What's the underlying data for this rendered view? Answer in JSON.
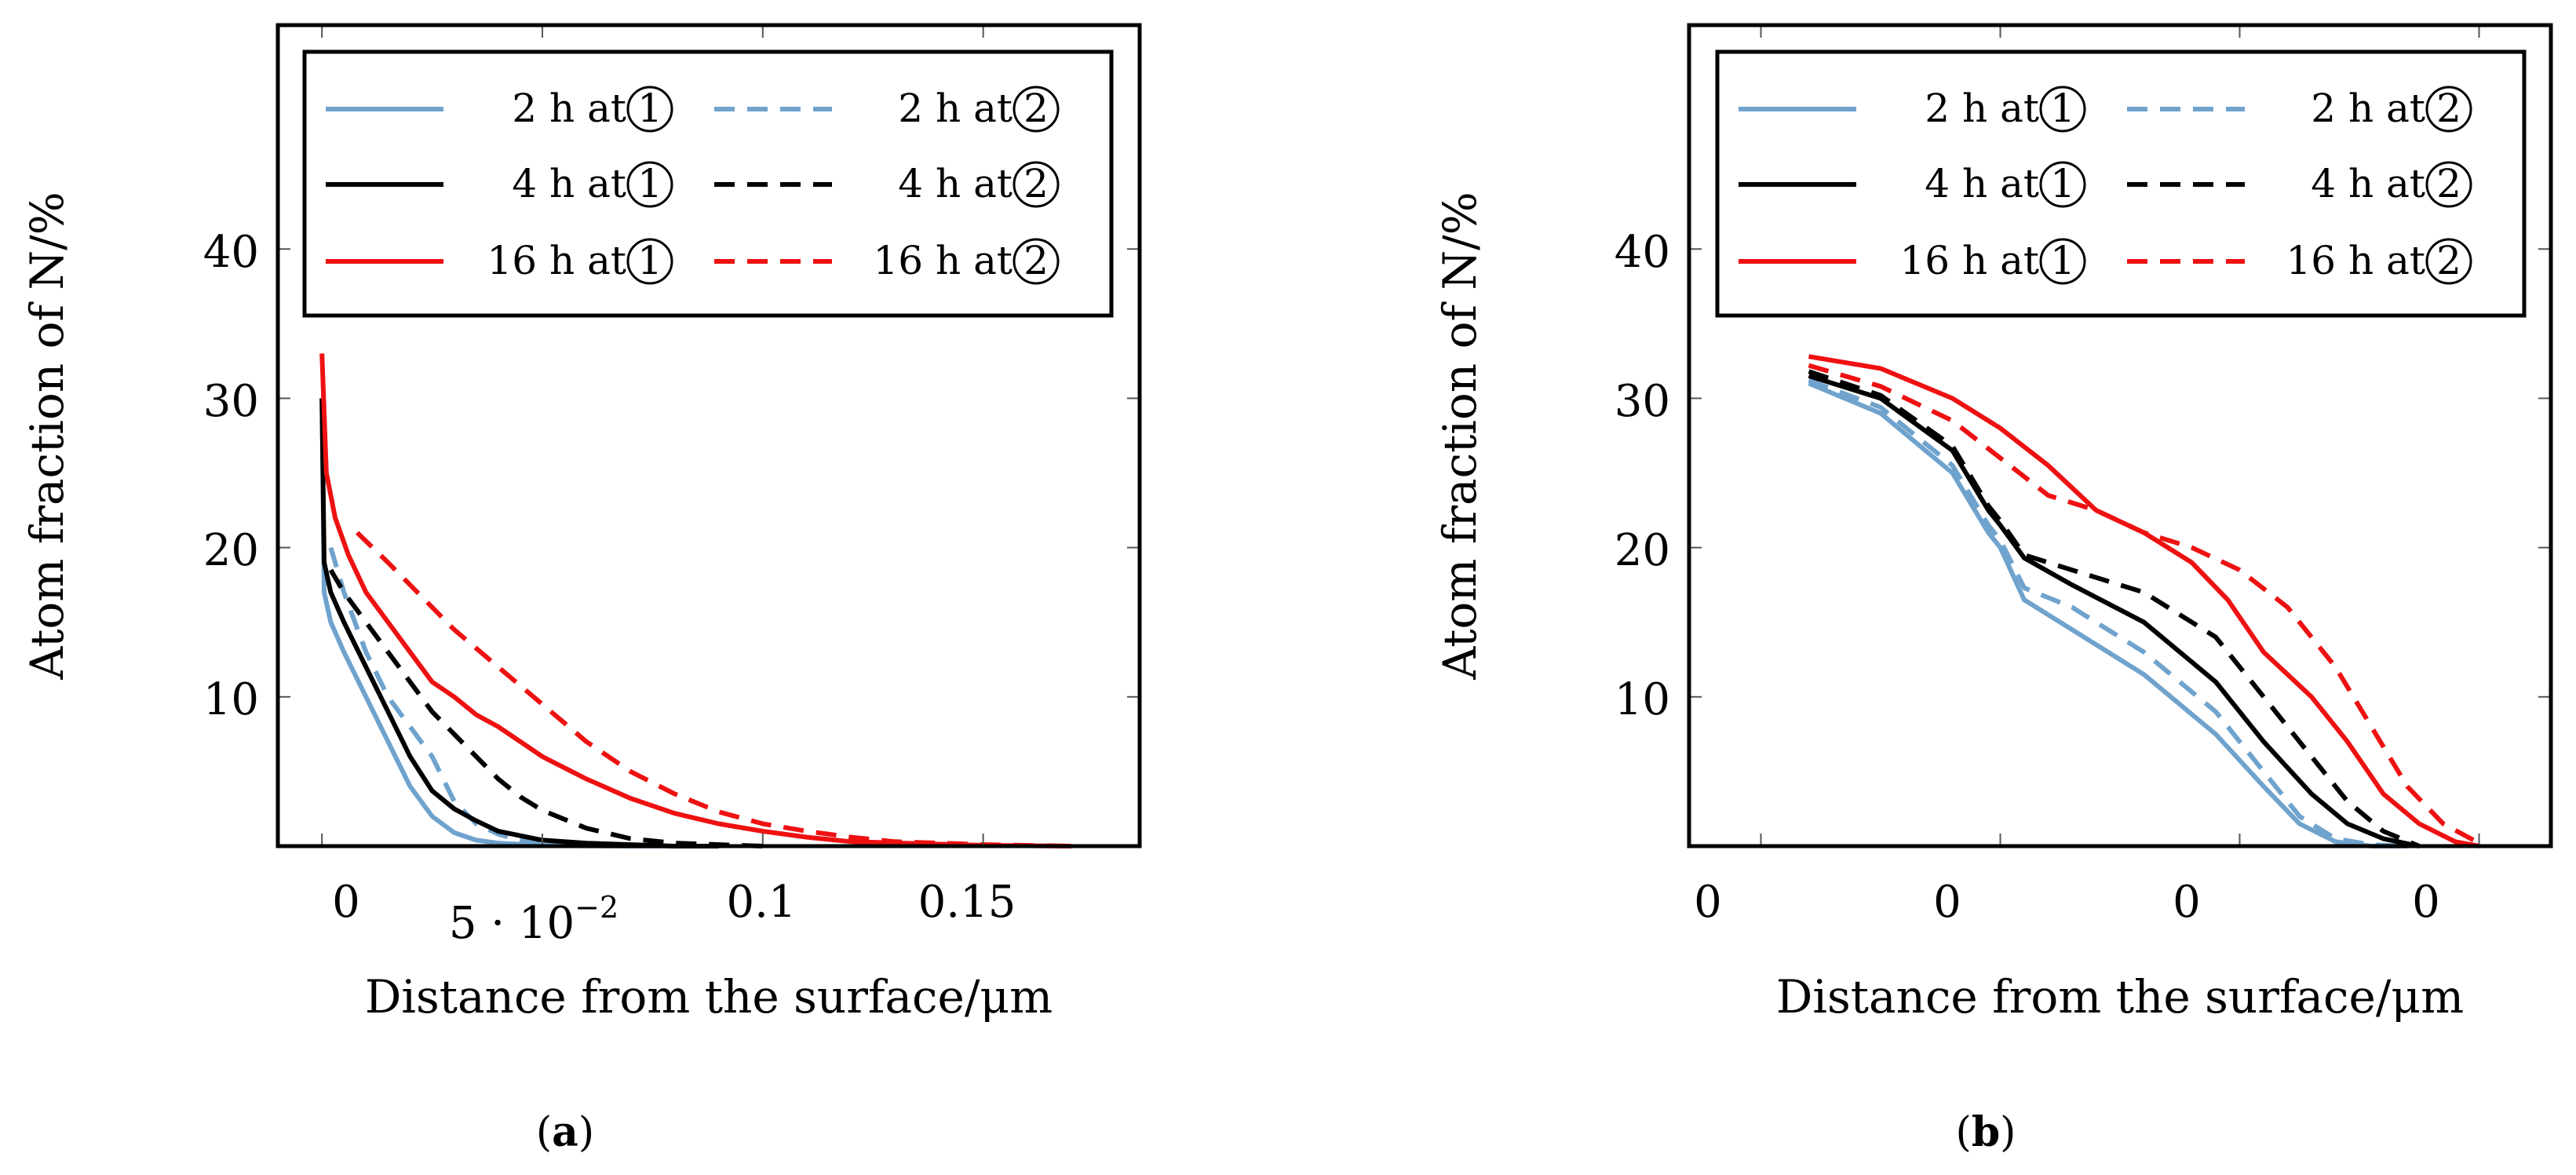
{
  "colors": {
    "lightblue": "#6fa3cd",
    "black": "#000000",
    "red": "#ee1111"
  },
  "chart_data": [
    {
      "panel": "a",
      "caption_letter": "a",
      "type": "line",
      "xlabel": "Distance from the surface/μm",
      "ylabel": "Atom fraction of N/%",
      "xlim": [
        -0.01,
        0.1855
      ],
      "ylim": [
        0,
        55
      ],
      "x_ticks": [
        0,
        0.05,
        0.1,
        0.15
      ],
      "x_tick_labels": [
        "0",
        "5 · 10",
        "0.1",
        "0.15"
      ],
      "x_tick_exponent": "−2",
      "y_ticks": [
        10,
        20,
        30,
        40
      ],
      "y_tick_labels": [
        "10",
        "20",
        "30",
        "40"
      ],
      "legend": {
        "placement": "top",
        "entries": [
          {
            "hours": "2",
            "unit": "h at",
            "step": "1",
            "color": "lightblue",
            "dash": false
          },
          {
            "hours": "2",
            "unit": "h at",
            "step": "2",
            "color": "lightblue",
            "dash": true
          },
          {
            "hours": "4",
            "unit": "h at",
            "step": "1",
            "color": "black",
            "dash": false
          },
          {
            "hours": "4",
            "unit": "h at",
            "step": "2",
            "color": "black",
            "dash": true
          },
          {
            "hours": "16",
            "unit": "h at",
            "step": "1",
            "color": "red",
            "dash": false
          },
          {
            "hours": "16",
            "unit": "h at",
            "step": "2",
            "color": "red",
            "dash": true
          }
        ]
      },
      "series": [
        {
          "name": "2 h at 1",
          "color": "lightblue",
          "dash": false,
          "x": [
            0,
            0.0005,
            0.002,
            0.005,
            0.01,
            0.015,
            0.02,
            0.025,
            0.03,
            0.035,
            0.04,
            0.05,
            0.06,
            0.07,
            0.08
          ],
          "y": [
            30,
            17,
            15,
            13,
            10,
            7,
            4,
            2,
            0.9,
            0.4,
            0.2,
            0.05,
            0.02,
            0,
            0
          ]
        },
        {
          "name": "2 h at 2",
          "color": "lightblue",
          "dash": true,
          "x": [
            0.002,
            0.005,
            0.01,
            0.015,
            0.02,
            0.025,
            0.03,
            0.035,
            0.04,
            0.045,
            0.05,
            0.06,
            0.07,
            0.08
          ],
          "y": [
            20,
            17,
            13,
            10,
            8,
            6,
            3,
            1.5,
            0.8,
            0.4,
            0.2,
            0.1,
            0,
            0
          ]
        },
        {
          "name": "4 h at 1",
          "color": "black",
          "dash": false,
          "x": [
            0,
            0.0005,
            0.002,
            0.005,
            0.01,
            0.015,
            0.02,
            0.025,
            0.03,
            0.035,
            0.04,
            0.05,
            0.06,
            0.07,
            0.08,
            0.09
          ],
          "y": [
            30,
            19,
            17,
            15,
            12,
            9,
            6,
            3.7,
            2.5,
            1.7,
            1,
            0.4,
            0.2,
            0.1,
            0,
            0
          ]
        },
        {
          "name": "4 h at 2",
          "color": "black",
          "dash": true,
          "x": [
            0.002,
            0.005,
            0.01,
            0.015,
            0.02,
            0.025,
            0.03,
            0.035,
            0.04,
            0.045,
            0.05,
            0.06,
            0.07,
            0.08,
            0.09,
            0.1
          ],
          "y": [
            18.5,
            17,
            15,
            13,
            11,
            9,
            7.5,
            6,
            4.5,
            3.3,
            2.4,
            1.2,
            0.5,
            0.2,
            0.1,
            0
          ]
        },
        {
          "name": "16 h at 1",
          "color": "red",
          "dash": false,
          "x": [
            0,
            0.001,
            0.003,
            0.006,
            0.01,
            0.015,
            0.02,
            0.025,
            0.03,
            0.035,
            0.04,
            0.05,
            0.06,
            0.07,
            0.08,
            0.09,
            0.1,
            0.11,
            0.12,
            0.15,
            0.17
          ],
          "y": [
            33,
            25,
            22,
            19.5,
            17,
            15,
            13,
            11,
            10,
            8.8,
            8,
            6,
            4.5,
            3.2,
            2.2,
            1.5,
            1,
            0.6,
            0.3,
            0.05,
            0
          ]
        },
        {
          "name": "16 h at 2",
          "color": "red",
          "dash": true,
          "x": [
            0.008,
            0.015,
            0.02,
            0.03,
            0.04,
            0.05,
            0.06,
            0.07,
            0.08,
            0.09,
            0.1,
            0.11,
            0.12,
            0.13,
            0.15,
            0.17
          ],
          "y": [
            21,
            19,
            17.5,
            14.5,
            12,
            9.5,
            7,
            5,
            3.5,
            2.3,
            1.5,
            1,
            0.6,
            0.3,
            0.1,
            0
          ]
        }
      ]
    },
    {
      "panel": "b",
      "caption_letter": "b",
      "type": "line",
      "xlabel": "Distance from the surface/μm",
      "ylabel": "Atom fraction of N/%",
      "xlim": [
        -0.3,
        3.3
      ],
      "ylim": [
        0,
        55
      ],
      "x_ticks": [
        0,
        1,
        2,
        3
      ],
      "x_tick_labels": [
        "0",
        "0",
        "0",
        "0"
      ],
      "y_ticks": [
        10,
        20,
        30,
        40
      ],
      "y_tick_labels": [
        "10",
        "20",
        "30",
        "40"
      ],
      "legend": {
        "placement": "top",
        "entries": [
          {
            "hours": "2",
            "unit": "h at",
            "step": "1",
            "color": "lightblue",
            "dash": false
          },
          {
            "hours": "2",
            "unit": "h at",
            "step": "2",
            "color": "lightblue",
            "dash": true
          },
          {
            "hours": "4",
            "unit": "h at",
            "step": "1",
            "color": "black",
            "dash": false
          },
          {
            "hours": "4",
            "unit": "h at",
            "step": "2",
            "color": "black",
            "dash": true
          },
          {
            "hours": "16",
            "unit": "h at",
            "step": "1",
            "color": "red",
            "dash": false
          },
          {
            "hours": "16",
            "unit": "h at",
            "step": "2",
            "color": "red",
            "dash": true
          }
        ]
      },
      "series": [
        {
          "name": "2 h at 1",
          "color": "lightblue",
          "dash": false,
          "x": [
            0.2,
            0.5,
            0.8,
            0.95,
            1.0,
            1.1,
            1.3,
            1.6,
            1.9,
            2.1,
            2.25,
            2.4,
            2.55,
            2.7
          ],
          "y": [
            31,
            29,
            25,
            21,
            20,
            16.5,
            14.5,
            11.5,
            7.5,
            4,
            1.5,
            0.3,
            0,
            0
          ]
        },
        {
          "name": "2 h at 2",
          "color": "lightblue",
          "dash": true,
          "x": [
            0.2,
            0.5,
            0.8,
            0.95,
            1.0,
            1.1,
            1.3,
            1.6,
            1.9,
            2.1,
            2.25,
            2.4,
            2.55,
            2.7
          ],
          "y": [
            31.2,
            29.4,
            25.5,
            21.5,
            20.5,
            17.3,
            16,
            13,
            9,
            5,
            2,
            0.5,
            0.1,
            0
          ]
        },
        {
          "name": "4 h at 1",
          "color": "black",
          "dash": false,
          "x": [
            0.2,
            0.5,
            0.8,
            0.95,
            1.0,
            1.1,
            1.3,
            1.6,
            1.9,
            2.1,
            2.3,
            2.45,
            2.6,
            2.75
          ],
          "y": [
            31.5,
            30,
            26.5,
            22.5,
            21.5,
            19.3,
            17.5,
            15,
            11,
            7,
            3.5,
            1.5,
            0.5,
            0
          ]
        },
        {
          "name": "4 h at 2",
          "color": "black",
          "dash": true,
          "x": [
            0.2,
            0.5,
            0.8,
            0.95,
            1.0,
            1.1,
            1.3,
            1.6,
            1.9,
            2.1,
            2.3,
            2.45,
            2.6,
            2.75
          ],
          "y": [
            31.8,
            30.2,
            26.8,
            22.8,
            21.8,
            19.5,
            18.5,
            17,
            14,
            10,
            6,
            3,
            1,
            0
          ]
        },
        {
          "name": "16 h at 1",
          "color": "red",
          "dash": false,
          "x": [
            0.2,
            0.5,
            0.8,
            1.0,
            1.2,
            1.4,
            1.6,
            1.8,
            1.95,
            2.1,
            2.3,
            2.45,
            2.6,
            2.75,
            2.9,
            3.0
          ],
          "y": [
            32.8,
            32,
            30,
            28,
            25.5,
            22.5,
            21,
            19,
            16.5,
            13,
            10,
            7,
            3.5,
            1.5,
            0.3,
            0
          ]
        },
        {
          "name": "16 h at 2",
          "color": "red",
          "dash": true,
          "x": [
            0.2,
            0.5,
            0.8,
            1.0,
            1.2,
            1.4,
            1.6,
            1.8,
            2.0,
            2.2,
            2.4,
            2.55,
            2.7,
            2.85,
            3.0
          ],
          "y": [
            32.2,
            30.8,
            28.5,
            26,
            23.5,
            22.5,
            21,
            20,
            18.5,
            16,
            12,
            8,
            4,
            1.5,
            0.2
          ]
        }
      ]
    }
  ]
}
